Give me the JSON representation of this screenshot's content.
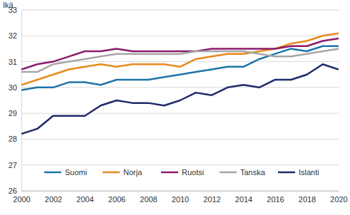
{
  "chart_data": {
    "type": "line",
    "y_label": "Ikä",
    "x": [
      2000,
      2001,
      2002,
      2003,
      2004,
      2005,
      2006,
      2007,
      2008,
      2009,
      2010,
      2011,
      2012,
      2013,
      2014,
      2015,
      2016,
      2017,
      2018,
      2019,
      2020
    ],
    "xlim": [
      2000,
      2020
    ],
    "xticks": [
      2000,
      2002,
      2004,
      2006,
      2008,
      2010,
      2012,
      2014,
      2016,
      2018,
      2020
    ],
    "ylim": [
      26,
      33
    ],
    "yticks": [
      26,
      27,
      28,
      29,
      30,
      31,
      32,
      33
    ],
    "grid": true,
    "legend": "bottom",
    "series": [
      {
        "name": "Suomi",
        "color": "#1f74a8",
        "values": [
          29.9,
          30.0,
          30.0,
          30.2,
          30.2,
          30.1,
          30.3,
          30.3,
          30.3,
          30.4,
          30.5,
          30.6,
          30.7,
          30.8,
          30.8,
          31.1,
          31.3,
          31.5,
          31.4,
          31.6,
          31.6
        ]
      },
      {
        "name": "Norja",
        "color": "#e8891d",
        "values": [
          30.1,
          30.3,
          30.5,
          30.7,
          30.8,
          30.9,
          30.8,
          30.9,
          30.9,
          30.9,
          30.8,
          31.1,
          31.2,
          31.3,
          31.3,
          31.4,
          31.5,
          31.7,
          31.8,
          32.0,
          32.1
        ]
      },
      {
        "name": "Ruotsi",
        "color": "#8c1a6e",
        "values": [
          30.7,
          30.9,
          31.0,
          31.2,
          31.4,
          31.4,
          31.5,
          31.4,
          31.4,
          31.4,
          31.4,
          31.4,
          31.5,
          31.5,
          31.5,
          31.5,
          31.5,
          31.6,
          31.6,
          31.8,
          31.9
        ]
      },
      {
        "name": "Tanska",
        "color": "#a6a6a6",
        "values": [
          30.6,
          30.6,
          30.9,
          31.0,
          31.1,
          31.2,
          31.3,
          31.3,
          31.3,
          31.3,
          31.3,
          31.4,
          31.4,
          31.4,
          31.4,
          31.3,
          31.2,
          31.2,
          31.3,
          31.4,
          31.5
        ]
      },
      {
        "name": "Islanti",
        "color": "#1f2a6b",
        "values": [
          28.2,
          28.4,
          28.9,
          28.9,
          28.9,
          29.3,
          29.5,
          29.4,
          29.4,
          29.3,
          29.5,
          29.8,
          29.7,
          30.0,
          30.1,
          30.0,
          30.3,
          30.3,
          30.5,
          30.9,
          30.7
        ]
      }
    ]
  }
}
